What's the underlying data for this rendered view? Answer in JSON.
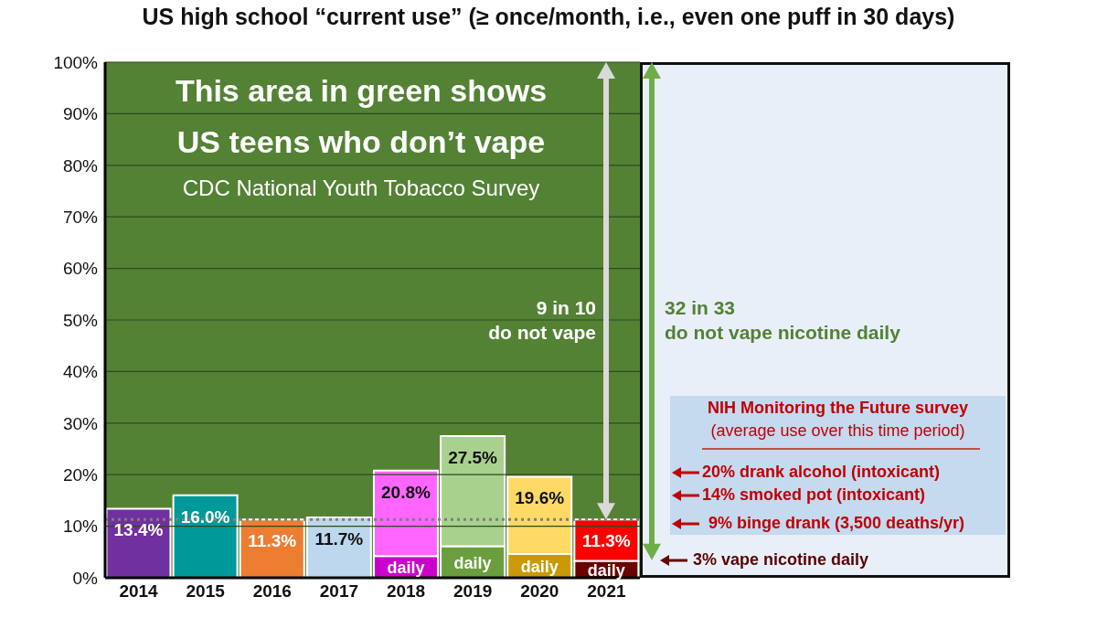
{
  "chart_data": {
    "type": "bar",
    "title": "US high school “current use” (≥ once/month, i.e., even one puff in 30 days)",
    "categories": [
      "2014",
      "2015",
      "2016",
      "2017",
      "2018",
      "2019",
      "2020",
      "2021"
    ],
    "stacked": true,
    "series": [
      {
        "name": "daily",
        "values": [
          null,
          null,
          null,
          null,
          4.2,
          6.1,
          4.6,
          3.3
        ],
        "colors": [
          "#7030a0",
          "#009999",
          "#ed7d31",
          "#bdd7ee",
          "#cc00cc",
          "#6a9e3f",
          "#c99a06",
          "#6b0000"
        ]
      },
      {
        "values": [
          13.4,
          16.0,
          11.3,
          11.7,
          16.6,
          21.4,
          15.0,
          8.0
        ],
        "colors": [
          "#7030a0",
          "#009999",
          "#ed7d31",
          "#bdd7ee",
          "#ff66ff",
          "#a9d18e",
          "#ffd966",
          "#ff0000"
        ]
      }
    ],
    "totals": [
      "13.4%",
      "16.0%",
      "11.3%",
      "11.7%",
      "20.8%",
      "27.5%",
      "19.6%",
      "11.3%"
    ],
    "ylim": [
      0,
      100
    ],
    "yticks": [
      {
        "value": 0,
        "label": "0%"
      },
      {
        "value": 10,
        "label": "10%"
      },
      {
        "value": 20,
        "label": "20%"
      },
      {
        "value": 30,
        "label": "30%"
      },
      {
        "value": 40,
        "label": "40%"
      },
      {
        "value": 50,
        "label": "50%"
      },
      {
        "value": 60,
        "label": "60%"
      },
      {
        "value": 70,
        "label": "70%"
      },
      {
        "value": 80,
        "label": "80%"
      },
      {
        "value": 90,
        "label": "90%"
      },
      {
        "value": 100,
        "label": "100%"
      }
    ],
    "grid": "y",
    "bands": [
      {
        "axis": "y",
        "from": 0,
        "to": 100,
        "color": "#548235"
      }
    ],
    "ref_lines": [
      {
        "axis": "y",
        "value": 11.3,
        "color": "#7f7f7f",
        "line_style": "dotted"
      }
    ],
    "annotations": [
      "This area in green shows",
      "US teens who don’t vape",
      "CDC National Youth Tobacco Survey",
      "9 in 10\ndo not vape",
      "32 in 33\ndo not vape nicotine daily",
      "NIH Monitoring the Future survey",
      "(average use over this time period)",
      "20% drank alcohol (intoxicant)",
      "14% smoked pot (intoxicant)",
      "9% binge drank (3,500 deaths/yr)",
      "3% vape nicotine daily"
    ]
  }
}
